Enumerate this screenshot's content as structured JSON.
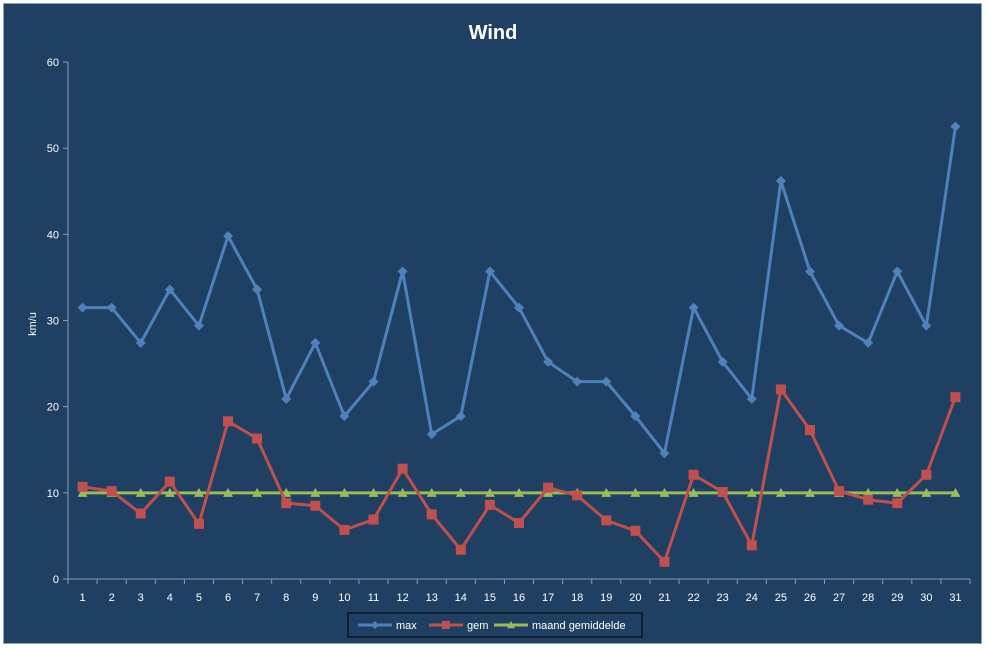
{
  "chart_data": {
    "type": "line",
    "title": "Wind",
    "ylabel": "km/u",
    "xlabel": "",
    "ylim": [
      0,
      60
    ],
    "yticks": [
      0,
      10,
      20,
      30,
      40,
      50,
      60
    ],
    "grid": false,
    "legend_position": "bottom",
    "x": [
      1,
      2,
      3,
      4,
      5,
      6,
      7,
      8,
      9,
      10,
      11,
      12,
      13,
      14,
      15,
      16,
      17,
      18,
      19,
      20,
      21,
      22,
      23,
      24,
      25,
      26,
      27,
      28,
      29,
      30,
      31
    ],
    "series": [
      {
        "name": "max",
        "color": "#4f81bd",
        "marker": "diamond",
        "values": [
          31.5,
          31.5,
          27.4,
          33.6,
          29.4,
          39.8,
          33.6,
          20.9,
          27.4,
          18.9,
          22.9,
          35.7,
          16.8,
          18.9,
          35.7,
          31.5,
          25.2,
          22.9,
          22.9,
          18.9,
          14.6,
          31.5,
          25.2,
          20.9,
          46.2,
          35.7,
          29.4,
          27.4,
          35.7,
          29.4,
          52.5
        ]
      },
      {
        "name": "gem",
        "color": "#c0504d",
        "marker": "square",
        "values": [
          10.7,
          10.2,
          7.6,
          11.3,
          6.4,
          18.3,
          16.3,
          8.8,
          8.5,
          5.7,
          6.9,
          12.8,
          7.5,
          3.4,
          8.6,
          6.5,
          10.6,
          9.7,
          6.8,
          5.6,
          2.0,
          12.1,
          10.1,
          3.9,
          22.0,
          17.3,
          10.2,
          9.2,
          8.8,
          12.1,
          21.1
        ]
      },
      {
        "name": "maand gemiddelde",
        "color": "#9bbb59",
        "marker": "triangle",
        "values": [
          10,
          10,
          10,
          10,
          10,
          10,
          10,
          10,
          10,
          10,
          10,
          10,
          10,
          10,
          10,
          10,
          10,
          10,
          10,
          10,
          10,
          10,
          10,
          10,
          10,
          10,
          10,
          10,
          10,
          10,
          10
        ]
      }
    ]
  }
}
